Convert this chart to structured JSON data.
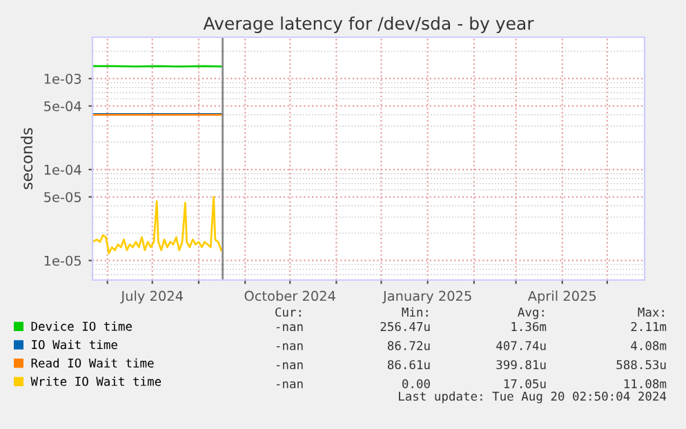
{
  "chart_data": {
    "type": "line",
    "title": "Average latency for /dev/sda - by year",
    "ylabel": "seconds",
    "log": "y",
    "xlim": [
      "2024-05-22",
      "2025-05-26"
    ],
    "xticks": [
      {
        "value": "2024-06-01",
        "label": null
      },
      {
        "value": "2024-07-01",
        "label": "July 2024"
      },
      {
        "value": "2024-08-01",
        "label": null
      },
      {
        "value": "2024-09-01",
        "label": null
      },
      {
        "value": "2024-10-01",
        "label": "October 2024"
      },
      {
        "value": "2024-11-01",
        "label": null
      },
      {
        "value": "2024-12-01",
        "label": null
      },
      {
        "value": "2025-01-01",
        "label": "January 2025"
      },
      {
        "value": "2025-02-01",
        "label": null
      },
      {
        "value": "2025-03-01",
        "label": null
      },
      {
        "value": "2025-04-01",
        "label": "April 2025"
      },
      {
        "value": "2025-05-01",
        "label": null
      }
    ],
    "ylim": [
      6.1e-06,
      0.00285
    ],
    "yticks": [
      {
        "value": 1e-05,
        "label": "1e-05"
      },
      {
        "value": 5e-05,
        "label": "5e-05"
      },
      {
        "value": 0.0001,
        "label": "1e-04"
      },
      {
        "value": 0.0005,
        "label": "5e-04"
      },
      {
        "value": 0.001,
        "label": "1e-03"
      }
    ],
    "grid": true,
    "legend": "bottom",
    "marker": "none",
    "line_style": "solid",
    "ref_lines": [
      {
        "axis": "x",
        "value": "2024-08-17",
        "label": null,
        "color": "#888888"
      }
    ],
    "series": [
      {
        "name": "Device IO time",
        "color": "#00cc00",
        "x": [
          "2024-05-22",
          "2024-06-05",
          "2024-06-20",
          "2024-07-05",
          "2024-07-20",
          "2024-08-05",
          "2024-08-16"
        ],
        "values": [
          0.00137,
          0.00137,
          0.00136,
          0.00137,
          0.00136,
          0.00137,
          0.00136
        ]
      },
      {
        "name": "IO Wait time",
        "color": "#0066b3",
        "x": [
          "2024-05-22",
          "2024-06-20",
          "2024-07-20",
          "2024-08-16"
        ],
        "values": [
          0.000408,
          0.000408,
          0.000408,
          0.000408
        ]
      },
      {
        "name": "Read IO Wait time",
        "color": "#ff8000",
        "x": [
          "2024-05-22",
          "2024-06-20",
          "2024-07-20",
          "2024-08-16"
        ],
        "values": [
          0.0004,
          0.0004,
          0.0004,
          0.0004
        ]
      },
      {
        "name": "Write IO Wait time",
        "color": "#ffcc00",
        "x": [
          "2024-05-22",
          "2024-05-25",
          "2024-05-27",
          "2024-05-29",
          "2024-05-31",
          "2024-06-02",
          "2024-06-04",
          "2024-06-06",
          "2024-06-08",
          "2024-06-10",
          "2024-06-12",
          "2024-06-14",
          "2024-06-16",
          "2024-06-18",
          "2024-06-20",
          "2024-06-22",
          "2024-06-24",
          "2024-06-26",
          "2024-06-28",
          "2024-06-30",
          "2024-07-02",
          "2024-07-04",
          "2024-07-05",
          "2024-07-07",
          "2024-07-09",
          "2024-07-11",
          "2024-07-13",
          "2024-07-15",
          "2024-07-17",
          "2024-07-19",
          "2024-07-21",
          "2024-07-23",
          "2024-07-24",
          "2024-07-26",
          "2024-07-28",
          "2024-07-30",
          "2024-08-01",
          "2024-08-03",
          "2024-08-05",
          "2024-08-07",
          "2024-08-09",
          "2024-08-11",
          "2024-08-12",
          "2024-08-14",
          "2024-08-16"
        ],
        "values": [
          1.6e-05,
          1.7e-05,
          1.6e-05,
          1.9e-05,
          1.8e-05,
          1.2e-05,
          1.4e-05,
          1.3e-05,
          1.5e-05,
          1.4e-05,
          1.7e-05,
          1.3e-05,
          1.5e-05,
          1.4e-05,
          1.6e-05,
          1.4e-05,
          1.8e-05,
          1.3e-05,
          1.6e-05,
          1.4e-05,
          1.6e-05,
          4.5e-05,
          1.6e-05,
          1.3e-05,
          1.7e-05,
          1.4e-05,
          1.6e-05,
          1.5e-05,
          1.8e-05,
          1.3e-05,
          1.6e-05,
          4.3e-05,
          1.6e-05,
          1.4e-05,
          1.7e-05,
          1.5e-05,
          1.6e-05,
          1.4e-05,
          1.6e-05,
          1.5e-05,
          1.4e-05,
          5e-05,
          1.7e-05,
          1.6e-05,
          1.3e-05
        ]
      }
    ],
    "annotations": [
      "Cur:",
      "Min:",
      "Avg:",
      "Max:",
      "-nan",
      "256.47u",
      "1.36m",
      "2.11m",
      "-nan",
      "86.72u",
      "407.74u",
      "4.08m",
      "-nan",
      "86.61u",
      "399.81u",
      "588.53u",
      "-nan",
      "0.00",
      "17.05u",
      "11.08m",
      "Last update: Tue Aug 20 02:50:04 2024"
    ]
  }
}
